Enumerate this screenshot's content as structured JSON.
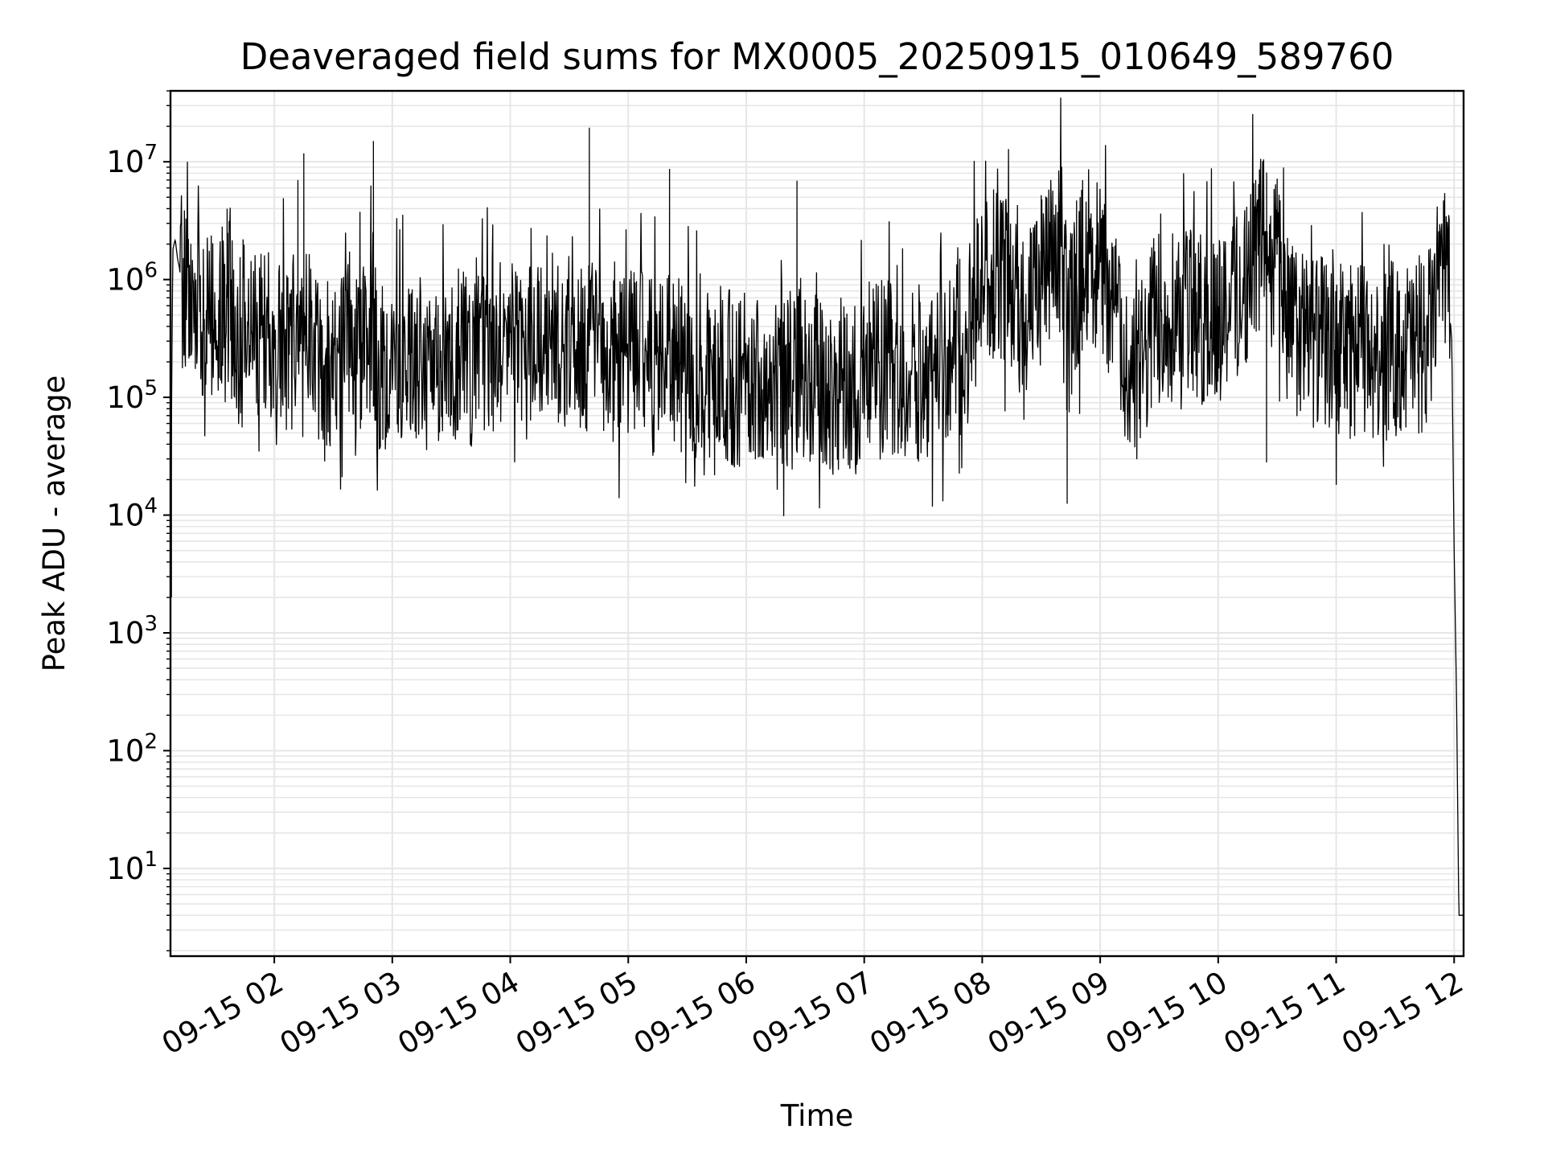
{
  "chart_data": {
    "type": "line",
    "title": "Deaveraged field sums for MX0005_20250915_010649_589760",
    "xlabel": "Time",
    "ylabel": "Peak ADU - average",
    "yscale": "log",
    "ylim": [
      1.8,
      40000000
    ],
    "xlim_hours": [
      1.12,
      12.08
    ],
    "grid": true,
    "line_color": "#000000",
    "grid_color": "#e6e6e6",
    "legend": "none",
    "x_ticks": [
      {
        "label": "09-15 02",
        "value": 2
      },
      {
        "label": "09-15 03",
        "value": 3
      },
      {
        "label": "09-15 04",
        "value": 4
      },
      {
        "label": "09-15 05",
        "value": 5
      },
      {
        "label": "09-15 06",
        "value": 6
      },
      {
        "label": "09-15 07",
        "value": 7
      },
      {
        "label": "09-15 08",
        "value": 8
      },
      {
        "label": "09-15 09",
        "value": 9
      },
      {
        "label": "09-15 10",
        "value": 10
      },
      {
        "label": "09-15 11",
        "value": 11
      },
      {
        "label": "09-15 12",
        "value": 12
      }
    ],
    "y_ticks": [
      {
        "base": "10",
        "exp": "1",
        "value": 10
      },
      {
        "base": "10",
        "exp": "2",
        "value": 100
      },
      {
        "base": "10",
        "exp": "3",
        "value": 1000
      },
      {
        "base": "10",
        "exp": "4",
        "value": 10000
      },
      {
        "base": "10",
        "exp": "5",
        "value": 100000
      },
      {
        "base": "10",
        "exp": "6",
        "value": 1000000
      },
      {
        "base": "10",
        "exp": "7",
        "value": 10000000
      }
    ],
    "series": [
      {
        "x": [
          1.12,
          1.13,
          1.14,
          1.16,
          1.18,
          1.2,
          1.22,
          1.25,
          1.28,
          1.32,
          1.36,
          1.4,
          1.45,
          1.5,
          1.55,
          1.6,
          1.65,
          1.7,
          1.75,
          1.8,
          1.85,
          1.9,
          2.0,
          2.1,
          2.2,
          2.3,
          2.4,
          2.5,
          2.6,
          2.7,
          2.8,
          2.85,
          2.9,
          3.0,
          3.1,
          3.2,
          3.3,
          3.4,
          3.5,
          3.6,
          3.7,
          3.8,
          3.9,
          4.0,
          4.1,
          4.2,
          4.3,
          4.4,
          4.5,
          4.6,
          4.7,
          4.75,
          4.8,
          4.9,
          5.0,
          5.1,
          5.2,
          5.3,
          5.35,
          5.4,
          5.5,
          5.6,
          5.7,
          5.8,
          5.9,
          6.0,
          6.1,
          6.2,
          6.3,
          6.4,
          6.45,
          6.5,
          6.6,
          6.7,
          6.8,
          6.9,
          7.0,
          7.1,
          7.2,
          7.3,
          7.4,
          7.5,
          7.6,
          7.7,
          7.8,
          7.9,
          8.0,
          8.1,
          8.2,
          8.3,
          8.4,
          8.5,
          8.6,
          8.7,
          8.72,
          8.8,
          8.9,
          9.0,
          9.1,
          9.2,
          9.3,
          9.4,
          9.5,
          9.6,
          9.7,
          9.8,
          9.9,
          10.0,
          10.1,
          10.2,
          10.3,
          10.4,
          10.45,
          10.5,
          10.6,
          10.7,
          10.8,
          10.9,
          11.0,
          11.1,
          11.2,
          11.3,
          11.4,
          11.5,
          11.6,
          11.7,
          11.8,
          11.85,
          11.9,
          11.95,
          11.98,
          12.0,
          12.02,
          12.04,
          12.05,
          12.08
        ],
        "y": [
          2000,
          120000,
          1800000,
          2200000,
          1500000,
          1200000,
          900000,
          600000,
          800000,
          500000,
          700000,
          400000,
          600000,
          300000,
          500000,
          700000,
          400000,
          300000,
          600000,
          250000,
          400000,
          350000,
          300000,
          250000,
          200000,
          300000,
          220000,
          180000,
          260000,
          200000,
          400000,
          250000,
          180000,
          200000,
          250000,
          180000,
          200000,
          230000,
          260000,
          210000,
          180000,
          240000,
          270000,
          300000,
          250000,
          220000,
          280000,
          320000,
          300000,
          260000,
          280000,
          350000,
          240000,
          200000,
          220000,
          260000,
          180000,
          160000,
          300000,
          200000,
          150000,
          170000,
          140000,
          180000,
          130000,
          140000,
          160000,
          150000,
          120000,
          130000,
          250000,
          150000,
          130000,
          110000,
          140000,
          120000,
          150000,
          180000,
          200000,
          150000,
          160000,
          140000,
          170000,
          200000,
          180000,
          400000,
          900000,
          1200000,
          800000,
          600000,
          500000,
          900000,
          1500000,
          2000000,
          300000,
          900000,
          1800000,
          1200000,
          700000,
          200000,
          150000,
          250000,
          450000,
          600000,
          700000,
          500000,
          400000,
          600000,
          700000,
          800000,
          1500000,
          2500000,
          800000,
          2000000,
          400000,
          350000,
          300000,
          280000,
          260000,
          250000,
          240000,
          250000,
          230000,
          260000,
          270000,
          300000,
          350000,
          900000,
          2500000,
          800000,
          300000,
          5000,
          300,
          4,
          4,
          4
        ]
      }
    ],
    "spikes": [
      {
        "x": 4.67,
        "y": 19500000
      },
      {
        "x": 2.84,
        "y": 15000000
      },
      {
        "x": 2.25,
        "y": 11800000
      },
      {
        "x": 5.35,
        "y": 8700000
      },
      {
        "x": 10.35,
        "y": 8600000
      },
      {
        "x": 10.5,
        "y": 7200000
      },
      {
        "x": 2.2,
        "y": 7000000
      },
      {
        "x": 6.43,
        "y": 6900000
      },
      {
        "x": 8.5,
        "y": 5200000
      },
      {
        "x": 11.91,
        "y": 4700000
      },
      {
        "x": 8.8,
        "y": 4700000
      },
      {
        "x": 1.6,
        "y": 4000000
      },
      {
        "x": 8.72,
        "y": 12500
      },
      {
        "x": 10.41,
        "y": 28000
      }
    ]
  }
}
